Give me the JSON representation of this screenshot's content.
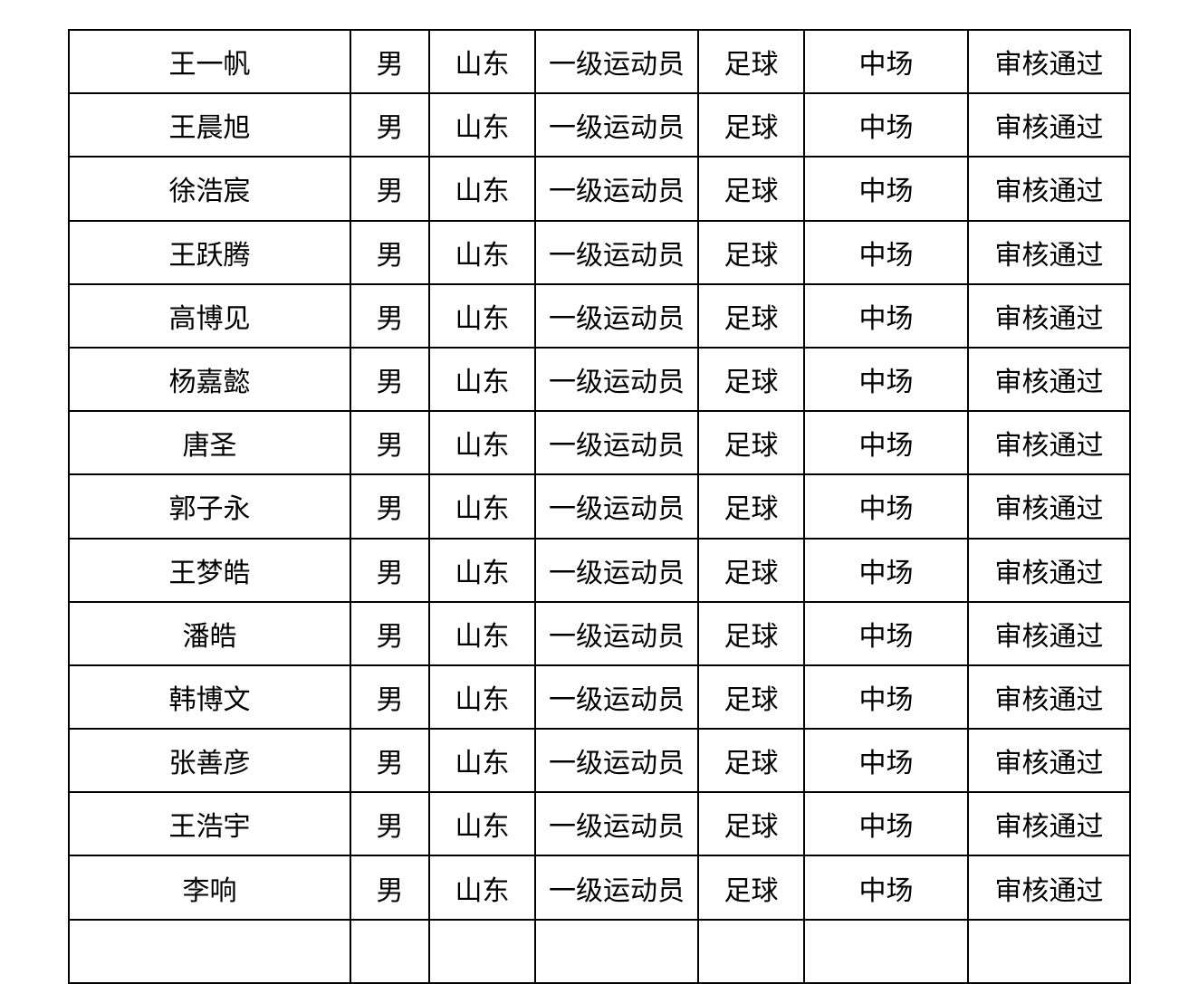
{
  "page": {
    "background_color": "#ffffff",
    "border_color": "#000000",
    "text_color": "#000000"
  },
  "table": {
    "rows": [
      {
        "name": "王一帆",
        "gender": "男",
        "region": "山东",
        "level": "一级运动员",
        "sport": "足球",
        "position": "中场",
        "status": "审核通过"
      },
      {
        "name": "王晨旭",
        "gender": "男",
        "region": "山东",
        "level": "一级运动员",
        "sport": "足球",
        "position": "中场",
        "status": "审核通过"
      },
      {
        "name": "徐浩宸",
        "gender": "男",
        "region": "山东",
        "level": "一级运动员",
        "sport": "足球",
        "position": "中场",
        "status": "审核通过"
      },
      {
        "name": "王跃腾",
        "gender": "男",
        "region": "山东",
        "level": "一级运动员",
        "sport": "足球",
        "position": "中场",
        "status": "审核通过"
      },
      {
        "name": "高博见",
        "gender": "男",
        "region": "山东",
        "level": "一级运动员",
        "sport": "足球",
        "position": "中场",
        "status": "审核通过"
      },
      {
        "name": "杨嘉懿",
        "gender": "男",
        "region": "山东",
        "level": "一级运动员",
        "sport": "足球",
        "position": "中场",
        "status": "审核通过"
      },
      {
        "name": "唐圣",
        "gender": "男",
        "region": "山东",
        "level": "一级运动员",
        "sport": "足球",
        "position": "中场",
        "status": "审核通过"
      },
      {
        "name": "郭子永",
        "gender": "男",
        "region": "山东",
        "level": "一级运动员",
        "sport": "足球",
        "position": "中场",
        "status": "审核通过"
      },
      {
        "name": "王梦皓",
        "gender": "男",
        "region": "山东",
        "level": "一级运动员",
        "sport": "足球",
        "position": "中场",
        "status": "审核通过"
      },
      {
        "name": "潘皓",
        "gender": "男",
        "region": "山东",
        "level": "一级运动员",
        "sport": "足球",
        "position": "中场",
        "status": "审核通过"
      },
      {
        "name": "韩博文",
        "gender": "男",
        "region": "山东",
        "level": "一级运动员",
        "sport": "足球",
        "position": "中场",
        "status": "审核通过"
      },
      {
        "name": "张善彦",
        "gender": "男",
        "region": "山东",
        "level": "一级运动员",
        "sport": "足球",
        "position": "中场",
        "status": "审核通过"
      },
      {
        "name": "王浩宇",
        "gender": "男",
        "region": "山东",
        "level": "一级运动员",
        "sport": "足球",
        "position": "中场",
        "status": "审核通过"
      },
      {
        "name": "李响",
        "gender": "男",
        "region": "山东",
        "level": "一级运动员",
        "sport": "足球",
        "position": "中场",
        "status": "审核通过"
      }
    ]
  }
}
